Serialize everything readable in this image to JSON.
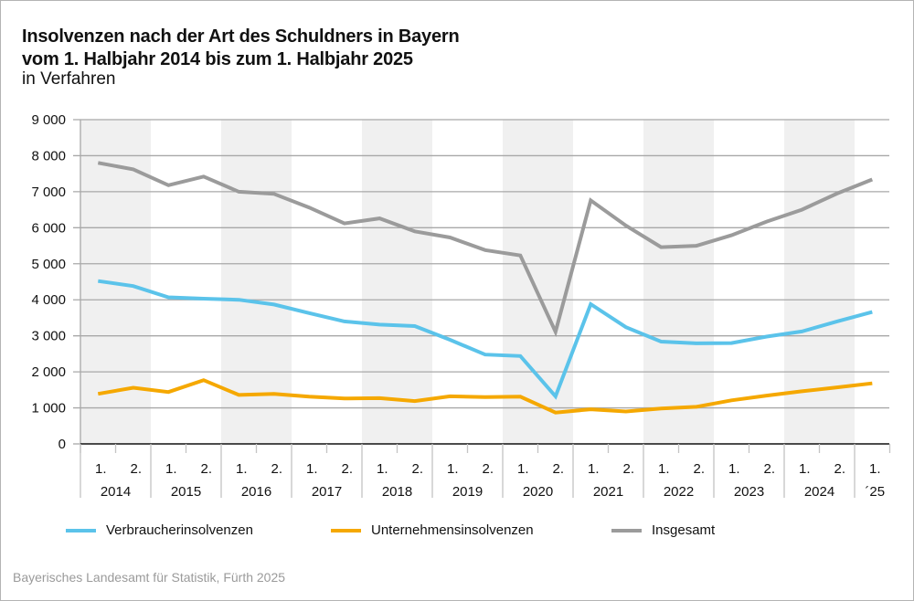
{
  "chart_data": {
    "type": "line",
    "title_line1": "Insolvenzen nach der Art des Schuldners in Bayern",
    "title_line2": "vom 1. Halbjahr 2014 bis zum 1. Halbjahr 2025",
    "subtitle": "in Verfahren",
    "ylim": [
      0,
      9000
    ],
    "yticks": [
      0,
      1000,
      2000,
      3000,
      4000,
      5000,
      6000,
      7000,
      8000,
      9000
    ],
    "ytick_labels": [
      "0",
      "1 000",
      "2 000",
      "3 000",
      "4 000",
      "5 000",
      "6 000",
      "7 000",
      "8 000",
      "9 000"
    ],
    "grid": true,
    "half_labels": [
      "1.",
      "2.",
      "1.",
      "2.",
      "1.",
      "2.",
      "1.",
      "2.",
      "1.",
      "2.",
      "1.",
      "2.",
      "1.",
      "2.",
      "1.",
      "2.",
      "1.",
      "2.",
      "1.",
      "2.",
      "1.",
      "2.",
      "1."
    ],
    "years": [
      "2014",
      "2015",
      "2016",
      "2017",
      "2018",
      "2019",
      "2020",
      "2021",
      "2022",
      "2023",
      "2024",
      "´25"
    ],
    "x": [
      "2014-H1",
      "2014-H2",
      "2015-H1",
      "2015-H2",
      "2016-H1",
      "2016-H2",
      "2017-H1",
      "2017-H2",
      "2018-H1",
      "2018-H2",
      "2019-H1",
      "2019-H2",
      "2020-H1",
      "2020-H2",
      "2021-H1",
      "2021-H2",
      "2022-H1",
      "2022-H2",
      "2023-H1",
      "2023-H2",
      "2024-H1",
      "2024-H2",
      "2025-H1"
    ],
    "series": [
      {
        "name": "Verbraucherinsolvenzen",
        "color": "#5bc3ea",
        "values": [
          4520,
          4380,
          4070,
          4030,
          4000,
          3870,
          3630,
          3400,
          3310,
          3270,
          2890,
          2480,
          2440,
          1320,
          3880,
          3240,
          2840,
          2790,
          2800,
          2980,
          3120,
          3400,
          3660
        ]
      },
      {
        "name": "Unternehmensinsolvenzen",
        "color": "#f5a800",
        "values": [
          1390,
          1560,
          1440,
          1770,
          1360,
          1390,
          1310,
          1260,
          1270,
          1190,
          1320,
          1300,
          1310,
          870,
          960,
          900,
          980,
          1030,
          1210,
          1340,
          1460,
          1570,
          1680
        ]
      },
      {
        "name": "Insgesamt",
        "color": "#9b9b9b",
        "values": [
          7800,
          7620,
          7180,
          7420,
          7000,
          6940,
          6560,
          6120,
          6260,
          5900,
          5730,
          5380,
          5230,
          3110,
          6760,
          6060,
          5460,
          5500,
          5790,
          6170,
          6500,
          6950,
          7340
        ]
      }
    ],
    "legend_position": "bottom"
  },
  "footer": "Bayerisches Landesamt für Statistik, Fürth 2025"
}
